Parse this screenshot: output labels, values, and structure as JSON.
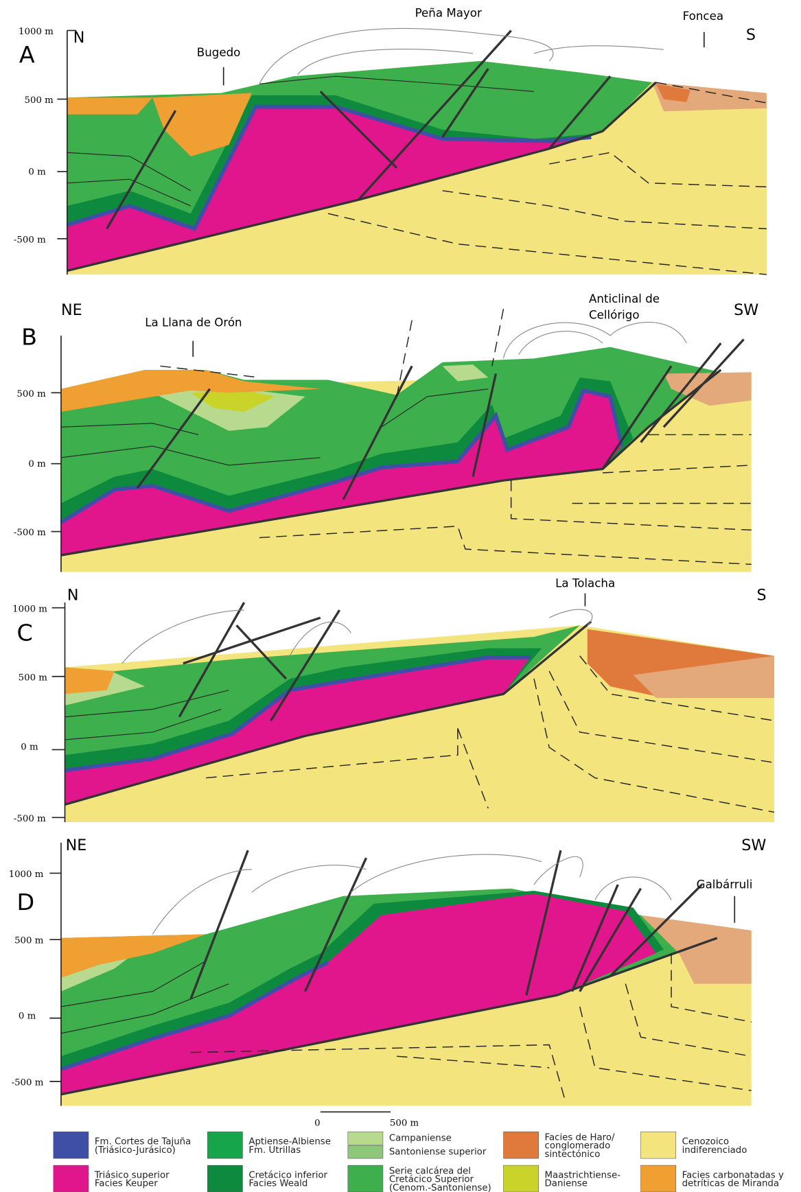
{
  "panels": [
    {
      "label": "A",
      "left": "N",
      "right": "S",
      "depths": [
        "1000 m",
        "500 m",
        "0 m",
        "-500 m"
      ],
      "places": [
        [
          "Bugedo"
        ],
        [
          "Peña Mayor"
        ],
        [
          "Foncea"
        ]
      ]
    },
    {
      "label": "B",
      "left": "NE",
      "right": "SW",
      "depths": [
        "500 m",
        "0 m",
        "-500 m"
      ],
      "places": [
        [
          "La Llana de Orón"
        ],
        [
          "Anticlinal de",
          "Cellórigo"
        ]
      ]
    },
    {
      "label": "C",
      "left": "N",
      "right": "S",
      "depths": [
        "1000 m",
        "500 m",
        "0 m",
        "-500 m"
      ],
      "places": [
        [
          "La Tolacha"
        ]
      ]
    },
    {
      "label": "D",
      "left": "NE",
      "right": "SW",
      "depths": [
        "1000 m",
        "500 m",
        "0 m",
        "-500 m"
      ],
      "places": [
        [
          "Galbárruli"
        ]
      ]
    }
  ],
  "scale_bar": [
    "0",
    "500 m"
  ],
  "legend": [
    {
      "lines": [
        "Fm. Cortes de Tajuña",
        "(Triásico-Jurásico)"
      ],
      "color": "#3f4fa6"
    },
    {
      "lines": [
        "Triásico superior",
        "Facies Keuper"
      ],
      "color": "#e2168c"
    },
    {
      "lines": [
        "Aptiense-Albiense",
        "Fm. Utrillas"
      ],
      "color": "#17a54b"
    },
    {
      "lines": [
        "Cretácico inferior",
        "Facies Weald"
      ],
      "color": "#0e8a3f"
    },
    {
      "lines": [
        "Campaniense"
      ],
      "color": "#b8da8e"
    },
    {
      "lines": [
        "Santoniense superior"
      ],
      "color": "#8cc77a"
    },
    {
      "lines": [
        "Serie calcárea del",
        "Cretácico Superior",
        "(Cenom.-Santoniense)"
      ],
      "color": "#3daf4c"
    },
    {
      "lines": [
        "Facies de Haro/",
        "conglomerado",
        "sintectónico"
      ],
      "color": "#e07a3c"
    },
    {
      "lines": [
        "Maastrichtiense-",
        "Daniense"
      ],
      "color": "#c9d32a"
    },
    {
      "lines": [
        "Cenozoico",
        "indiferenciado"
      ],
      "color": "#f3e47e"
    },
    {
      "lines": [
        "Facies carbonatadas y",
        "detríticas de Miranda"
      ],
      "color": "#f0a033"
    }
  ]
}
